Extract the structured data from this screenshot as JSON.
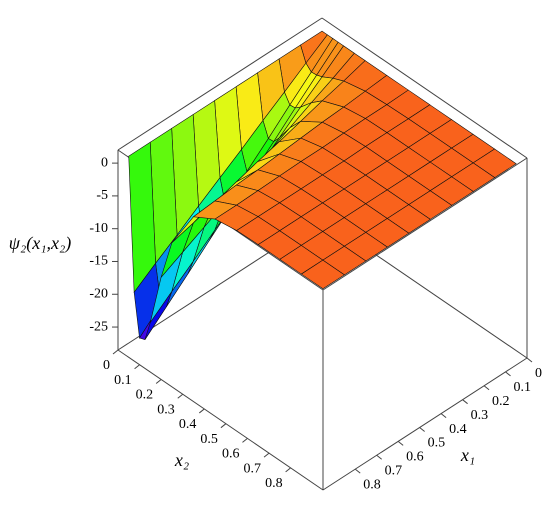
{
  "chart_data": {
    "type": "surface",
    "zlabel": "ψ₂(x₁,x₂)",
    "x1label": "x₁",
    "x2label": "x₂",
    "x1": [
      0,
      0.1,
      0.2,
      0.3,
      0.4,
      0.5,
      0.6,
      0.7,
      0.8,
      0.9
    ],
    "x2": [
      0,
      0.025,
      0.05,
      0.075,
      0.1,
      0.15,
      0.2,
      0.3,
      0.4,
      0.5,
      0.6,
      0.7,
      0.8,
      0.9
    ],
    "z": [
      [
        0,
        0,
        0,
        0,
        0,
        0,
        0,
        0,
        0,
        0,
        0,
        0,
        0,
        0
      ],
      [
        0,
        -2.2,
        -3.0,
        -2.9,
        -2.6,
        -1.7,
        -1.0,
        -0.3,
        -0.1,
        0,
        0,
        0,
        0,
        0
      ],
      [
        0,
        -4.5,
        -5.9,
        -5.8,
        -5.1,
        -3.3,
        -1.9,
        -0.6,
        -0.1,
        0,
        0,
        0,
        0,
        0
      ],
      [
        0,
        -6.7,
        -8.9,
        -8.8,
        -7.7,
        -5.0,
        -2.9,
        -0.8,
        -0.2,
        0,
        0,
        0,
        0,
        0
      ],
      [
        0,
        -9.0,
        -11.8,
        -11.7,
        -10.3,
        -6.7,
        -3.9,
        -1.1,
        -0.3,
        -0.1,
        0,
        0,
        0,
        0
      ],
      [
        0,
        -11.2,
        -14.8,
        -14.6,
        -12.8,
        -8.4,
        -4.8,
        -1.4,
        -0.3,
        -0.1,
        0,
        0,
        0,
        0
      ],
      [
        0,
        -13.4,
        -17.7,
        -17.5,
        -15.4,
        -10.0,
        -5.8,
        -1.7,
        -0.4,
        -0.1,
        0,
        0,
        0,
        0
      ],
      [
        0,
        -15.7,
        -20.7,
        -20.5,
        -18.0,
        -11.7,
        -6.8,
        -1.9,
        -0.5,
        -0.1,
        0,
        0,
        0,
        0
      ],
      [
        0,
        -17.9,
        -23.6,
        -23.4,
        -20.5,
        -13.4,
        -7.8,
        -2.2,
        -0.6,
        -0.1,
        0,
        0,
        0,
        0
      ],
      [
        0,
        -20.2,
        -26.6,
        -26.3,
        -23.1,
        -15.1,
        -8.7,
        -2.5,
        -0.6,
        -0.1,
        0,
        0,
        0,
        0
      ]
    ],
    "x1lim": [
      0,
      0.95
    ],
    "x2lim": [
      0,
      0.95
    ],
    "zlim": [
      -28.5,
      2
    ],
    "x1ticks": [
      0,
      0.1,
      0.2,
      0.3,
      0.4,
      0.5,
      0.6,
      0.7,
      0.8
    ],
    "x2ticks": [
      0,
      0.1,
      0.2,
      0.3,
      0.4,
      0.5,
      0.6,
      0.7,
      0.8
    ],
    "zticks": [
      0,
      -5,
      -10,
      -15,
      -20,
      -25
    ]
  }
}
